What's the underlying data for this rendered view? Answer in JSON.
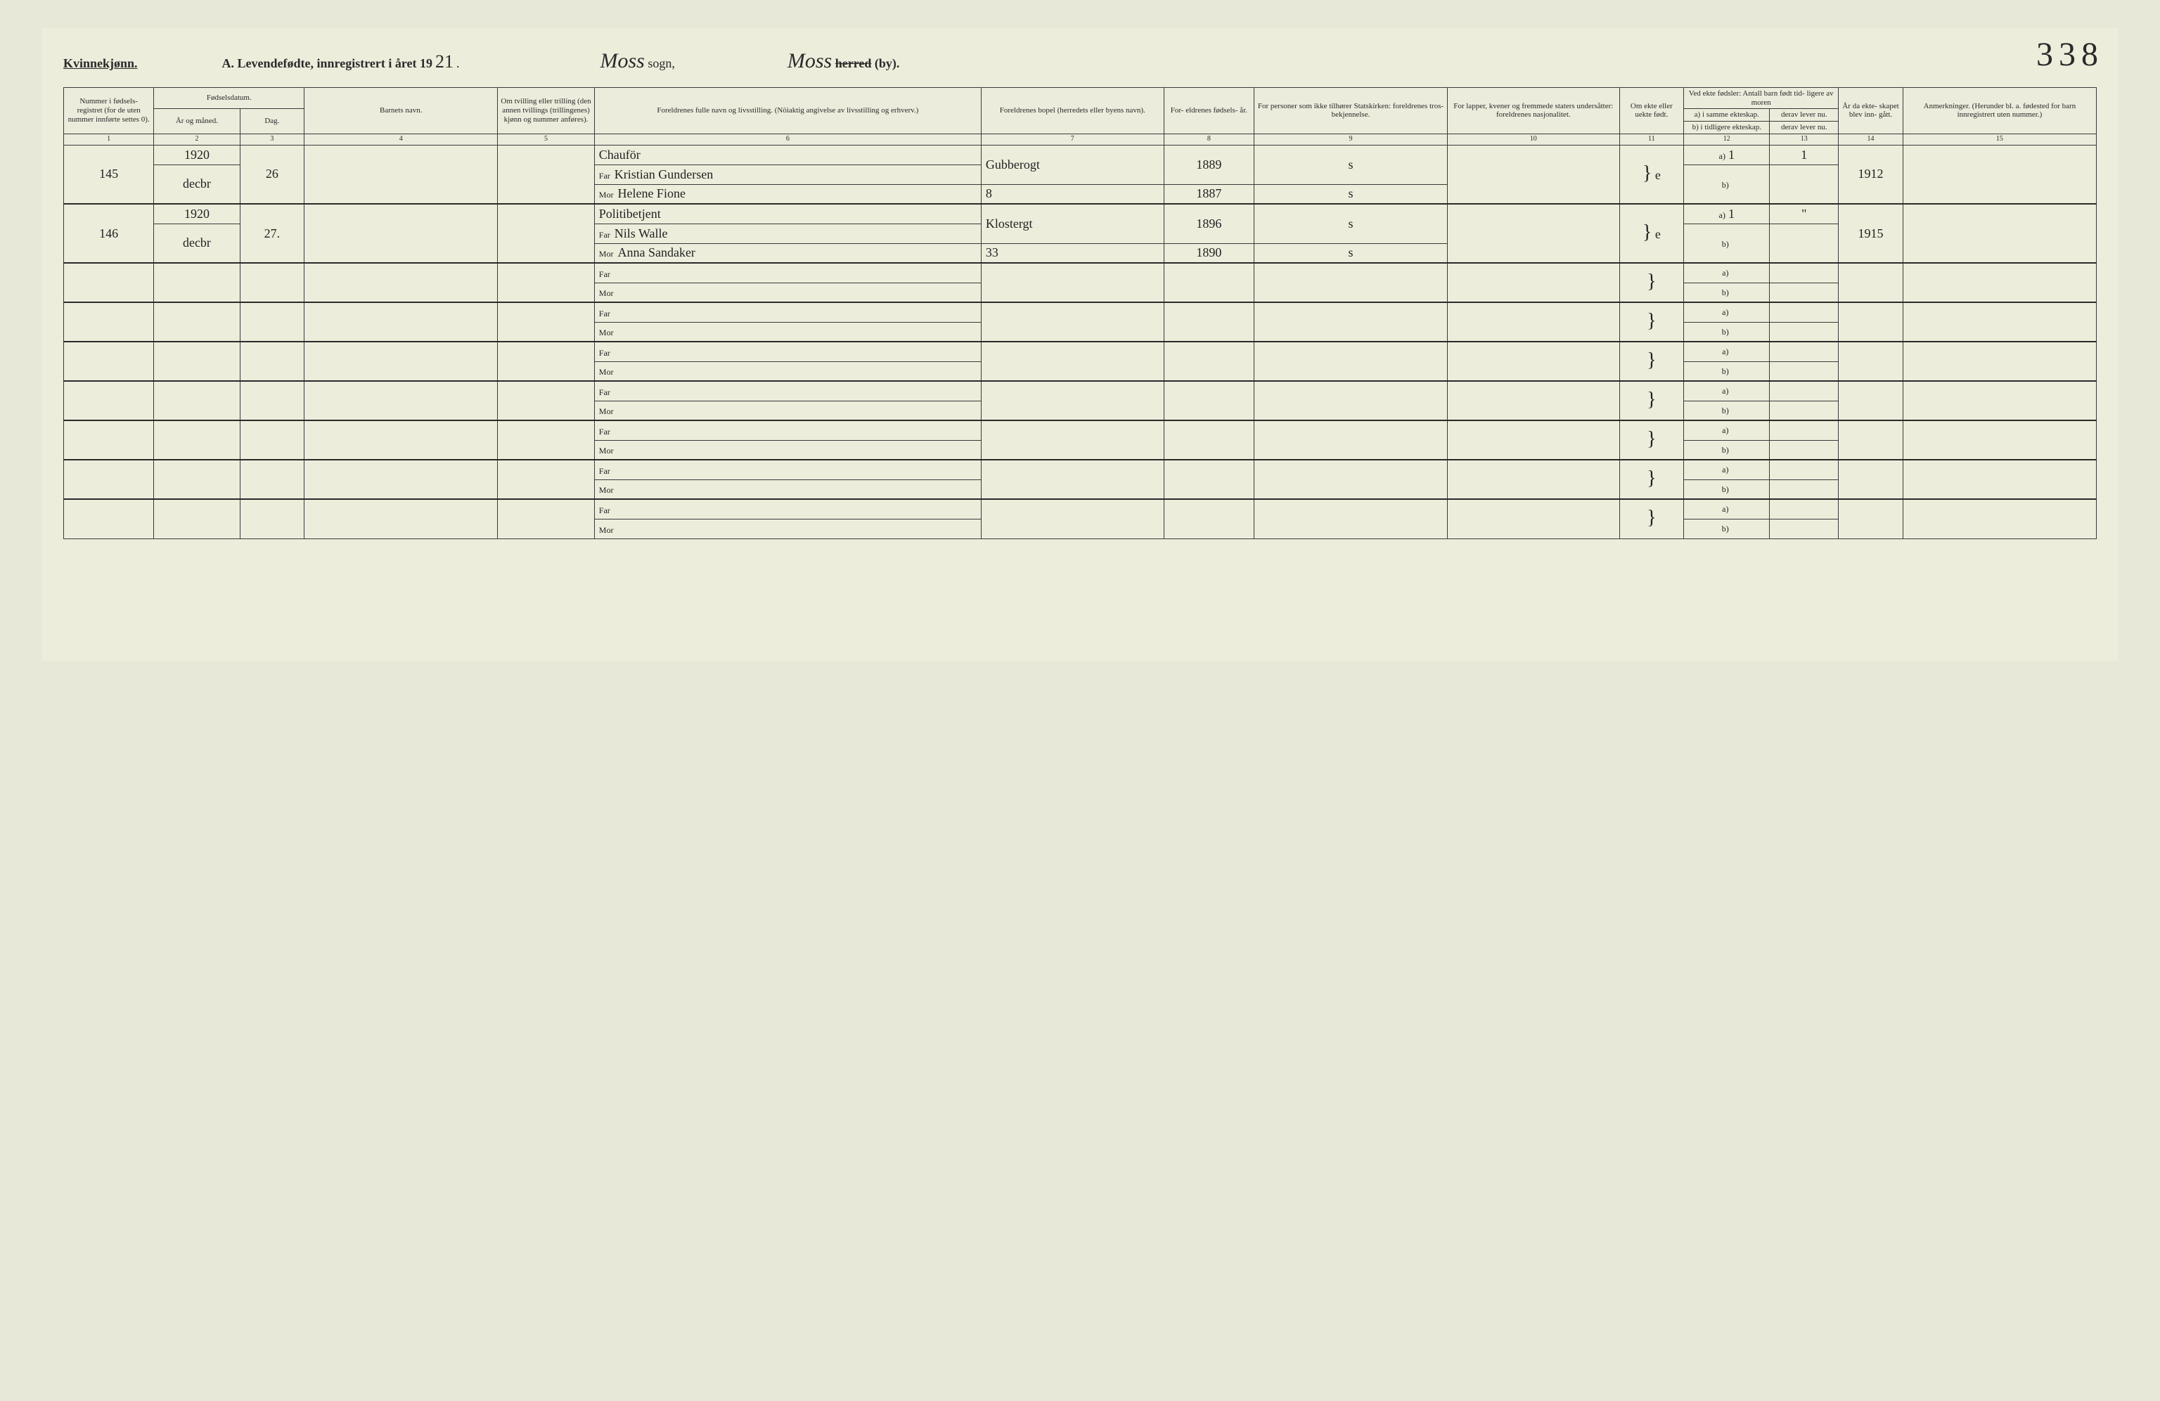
{
  "header": {
    "kvinne": "Kvinnekjønn.",
    "title_prefix": "A.",
    "title_main": "Levendefødte, innregistrert i året 19",
    "year_hand": "21",
    "sogn_hand": "Moss",
    "sogn_label": "sogn,",
    "by_hand": "Moss",
    "herred": "herred",
    "by_label": "(by).",
    "page_num": "338"
  },
  "columns": {
    "c1": "Nummer i fødsels- registret (for de uten nummer innførte settes 0).",
    "c_fodsel": "Fødselsdatum.",
    "c2": "År og måned.",
    "c3": "Dag.",
    "c4": "Barnets navn.",
    "c5": "Om tvilling eller trilling (den annen tvillings (trillingenes) kjønn og nummer anføres).",
    "c6": "Foreldrenes fulle navn og livsstilling. (Nöiaktig angivelse av livsstilling og erhverv.)",
    "c7": "Foreldrenes bopel (herredets eller byens navn).",
    "c8": "For- eldrenes fødsels- år.",
    "c9": "For personer som ikke tilhører Statskirken: foreldrenes tros- bekjennelse.",
    "c10": "For lapper, kvener og fremmede staters undersåtter: foreldrenes nasjonalitet.",
    "c11": "Om ekte eller uekte født.",
    "c_ved": "Ved ekte fødsler: Antall barn født tid- ligere av moren",
    "c12a": "a) i samme ekteskap.",
    "c12b": "b) i tidligere ekteskap.",
    "c13a": "derav lever nu.",
    "c13b": "derav lever nu.",
    "c14": "År da ekte- skapet blev inn- gått.",
    "c15": "Anmerkninger. (Herunder bl. a. fødested for barn innregistrert uten nummer.)",
    "nums": [
      "1",
      "2",
      "3",
      "4",
      "5",
      "6",
      "7",
      "8",
      "9",
      "10",
      "11",
      "12",
      "13",
      "14",
      "15"
    ]
  },
  "labels": {
    "far": "Far",
    "mor": "Mor",
    "a": "a)",
    "b": "b)"
  },
  "rows": [
    {
      "num": "145",
      "year": "1920",
      "month": "decbr",
      "day": "26",
      "occupation": "Chauför",
      "far_name": "Kristian Gundersen",
      "mor_name": "Helene Fione",
      "far_bopel": "Gubberogt",
      "mor_bopel": "8",
      "far_year": "1889",
      "mor_year": "1887",
      "c9_far": "s",
      "c9_mor": "s",
      "ekte": "e",
      "a_same": "1",
      "a_lever": "1",
      "b_tidl": "",
      "b_lever": "",
      "ekteskap_aar": "1912"
    },
    {
      "num": "146",
      "year": "1920",
      "month": "decbr",
      "day": "27.",
      "occupation": "Politibetjent",
      "far_name": "Nils Walle",
      "mor_name": "Anna Sandaker",
      "far_bopel": "Klostergt",
      "mor_bopel": "33",
      "far_year": "1896",
      "mor_year": "1890",
      "c9_far": "s",
      "c9_mor": "s",
      "ekte": "e",
      "a_same": "1",
      "a_lever": "\"",
      "b_tidl": "",
      "b_lever": "",
      "ekteskap_aar": "1915"
    }
  ],
  "empty_rows": 7,
  "style": {
    "bg": "#eceddb",
    "border": "#3a3a3a",
    "hand_font": "Brush Script MT",
    "print_font": "Times New Roman",
    "header_fontsize": 18,
    "th_fontsize": 11,
    "body_fontsize": 18
  }
}
